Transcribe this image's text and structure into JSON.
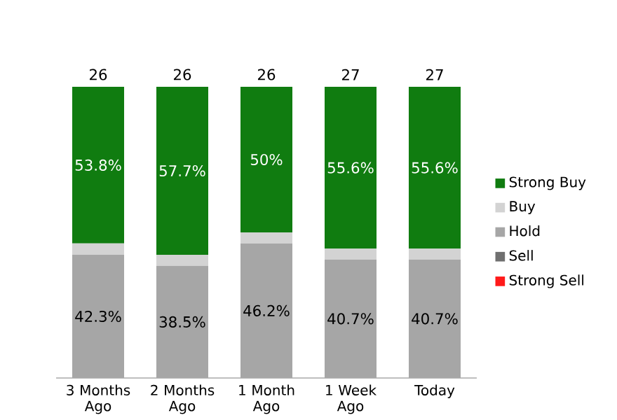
{
  "chart_data": {
    "type": "bar",
    "stacked": true,
    "categories": [
      "3 Months Ago",
      "2 Months Ago",
      "1 Month Ago",
      "1 Week Ago",
      "Today"
    ],
    "series": [
      {
        "name": "Strong Sell",
        "color": "#ff1a1a",
        "values": [
          0,
          0,
          0,
          0,
          0
        ]
      },
      {
        "name": "Sell",
        "color": "#707070",
        "values": [
          0,
          0,
          0,
          0,
          0
        ]
      },
      {
        "name": "Hold",
        "color": "#a6a6a6",
        "values": [
          42.3,
          38.5,
          46.2,
          40.7,
          40.7
        ],
        "value_labels": [
          "42.3%",
          "38.5%",
          "46.2%",
          "40.7%",
          "40.7%"
        ]
      },
      {
        "name": "Buy",
        "color": "#d3d3d3",
        "values": [
          3.9,
          3.8,
          3.8,
          3.7,
          3.7
        ]
      },
      {
        "name": "Strong Buy",
        "color": "#107c10",
        "values": [
          53.8,
          57.7,
          50,
          55.6,
          55.6
        ],
        "value_labels": [
          "53.8%",
          "57.7%",
          "50%",
          "55.6%",
          "55.6%"
        ]
      }
    ],
    "annotations": [
      {
        "text": "26",
        "x": "3 Months Ago",
        "y": 100
      },
      {
        "text": "26",
        "x": "2 Months Ago",
        "y": 100
      },
      {
        "text": "26",
        "x": "1 Month Ago",
        "y": 100
      },
      {
        "text": "27",
        "x": "1 Week Ago",
        "y": 100
      },
      {
        "text": "27",
        "x": "Today",
        "y": 100
      }
    ],
    "legend": "right"
  }
}
